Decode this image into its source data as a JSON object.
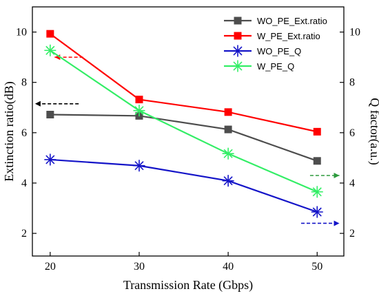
{
  "chart_data": {
    "type": "line",
    "title": "",
    "xlabel": "Transmission Rate (Gbps)",
    "ylabel_left": "Extinction ratio(dB)",
    "ylabel_right": "Q factor(a.u.)",
    "x": [
      20,
      30,
      40,
      50
    ],
    "xlim": [
      18,
      53
    ],
    "xticks": [
      20,
      30,
      40,
      50
    ],
    "ylim_left": [
      1.1,
      11
    ],
    "ylim_right": [
      1.1,
      11
    ],
    "yticks_left": [
      2,
      4,
      6,
      8,
      10
    ],
    "yticks_right": [
      2,
      4,
      6,
      8,
      10
    ],
    "grid": false,
    "legend_position": "top-right",
    "series": [
      {
        "name": "WO_PE_Ext.ratio",
        "values": [
          6.72,
          6.67,
          6.13,
          4.88
        ],
        "color": "#4d4d4d",
        "marker": "square",
        "axis": "left"
      },
      {
        "name": "W_PE_Ext.ratio",
        "values": [
          9.93,
          7.32,
          6.82,
          6.04
        ],
        "color": "#ff0000",
        "marker": "square",
        "axis": "left"
      },
      {
        "name": "WO_PE_Q",
        "values": [
          4.93,
          4.69,
          4.09,
          2.85
        ],
        "color": "#1414c8",
        "marker": "asterisk",
        "axis": "right"
      },
      {
        "name": "W_PE_Q",
        "values": [
          9.27,
          6.88,
          5.17,
          3.65
        ],
        "color": "#33ee66",
        "marker": "asterisk",
        "axis": "right"
      }
    ],
    "annotations": [
      {
        "type": "arrow",
        "direction": "left",
        "color": "#ff0000",
        "x_from": 23.7,
        "x_to": 20.5,
        "y": 9.0
      },
      {
        "type": "arrow",
        "direction": "left",
        "color": "#000000",
        "x_from": 23.2,
        "x_to": 18.3,
        "y": 7.15
      },
      {
        "type": "arrow",
        "direction": "right",
        "color": "#2d9a3d",
        "x_from": 49.2,
        "x_to": 52.5,
        "y": 4.3
      },
      {
        "type": "arrow",
        "direction": "right",
        "color": "#1414c8",
        "x_from": 48.2,
        "x_to": 52.5,
        "y": 2.4
      }
    ]
  }
}
